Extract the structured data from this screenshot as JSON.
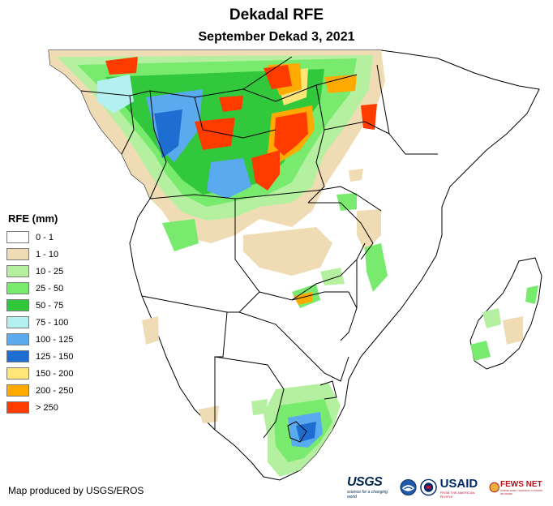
{
  "header": {
    "title": "Dekadal RFE",
    "subtitle": "September Dekad 3, 2021"
  },
  "legend": {
    "title": "RFE (mm)",
    "items": [
      {
        "label": "0 - 1",
        "color": "#ffffff"
      },
      {
        "label": "1 - 10",
        "color": "#f0dcb4"
      },
      {
        "label": "10 - 25",
        "color": "#b4f0a0"
      },
      {
        "label": "25 - 50",
        "color": "#78eb6e"
      },
      {
        "label": "50 - 75",
        "color": "#32c83c"
      },
      {
        "label": "75 - 100",
        "color": "#b4f0f0"
      },
      {
        "label": "100 - 125",
        "color": "#5aaaf0"
      },
      {
        "label": "125 - 150",
        "color": "#1e6ed2"
      },
      {
        "label": "150 - 200",
        "color": "#ffe678"
      },
      {
        "label": "200 - 250",
        "color": "#ffaa00"
      },
      {
        "label": "> 250",
        "color": "#ff3c00"
      }
    ]
  },
  "footer": {
    "credit": "Map produced by USGS/EROS"
  },
  "logos": {
    "usgs": "USGS",
    "usgs_tagline": "science for a changing world",
    "usaid": "USAID",
    "usaid_tagline": "FROM THE AMERICAN PEOPLE",
    "fewsnet": "FEWS NET",
    "fewsnet_tagline": "FAMINE EARLY WARNING SYSTEMS NETWORK"
  }
}
